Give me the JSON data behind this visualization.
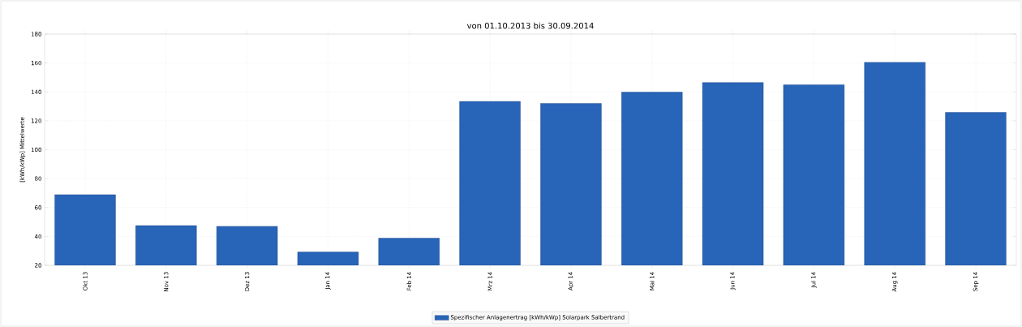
{
  "chart_data": {
    "type": "bar",
    "title": "von 01.10.2013 bis 30.09.2014",
    "ylabel": "[kWh/kWp] Mittelwerte",
    "categories": [
      "Okt 13",
      "Nov 13",
      "Dez 13",
      "Jan 14",
      "Feb 14",
      "Mrz 14",
      "Apr 14",
      "Mai 14",
      "Jun 14",
      "Jul 14",
      "Aug 14",
      "Sep 14"
    ],
    "series": [
      {
        "name": "Spezifischer Anlagenertrag [kWh/kWp] Solarpark Salbertrand",
        "color": "#2864b8",
        "values": [
          68.9,
          47.5,
          47,
          29.2,
          38.8,
          133.4,
          132,
          139.8,
          146.5,
          144.9,
          160.5,
          125.8
        ]
      }
    ],
    "ylim": [
      20,
      180
    ],
    "yticks": [
      20,
      40,
      60,
      80,
      100,
      120,
      140,
      160,
      180
    ],
    "grid": true,
    "legend": "bottom"
  }
}
